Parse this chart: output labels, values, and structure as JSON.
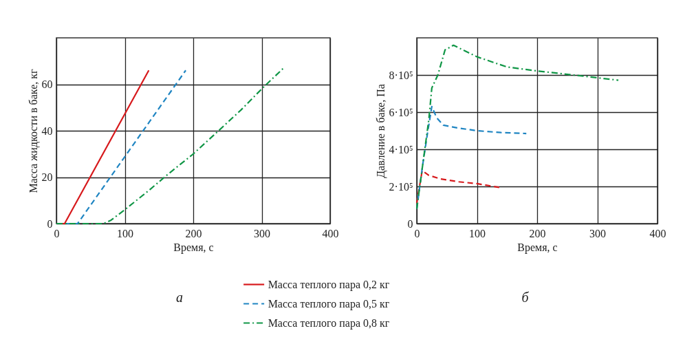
{
  "chart_data": [
    {
      "type": "line",
      "title": "а",
      "xlabel": "Время, с",
      "ylabel": "Масса жидкости в баке, кг",
      "xlim": [
        0,
        400
      ],
      "xticks": [
        0,
        100,
        200,
        300,
        400
      ],
      "ylim": [
        0,
        80
      ],
      "yticks": [
        0,
        20,
        40,
        60
      ],
      "grid": true,
      "legend": "bottom",
      "series": [
        {
          "name": "Масса теплого пара 0,2 кг",
          "color": "#d7191c",
          "line_style": "solid",
          "x": [
            0,
            12,
            135
          ],
          "values": [
            0,
            0,
            66
          ]
        },
        {
          "name": "Масса теплого пара 0,5 кг",
          "color": "#1f85c2",
          "line_style": "dashed",
          "x": [
            0,
            31,
            189
          ],
          "values": [
            0,
            0,
            66
          ]
        },
        {
          "name": "Масса теплого пара 0,8 кг",
          "color": "#109646",
          "line_style": "dashdot",
          "x": [
            0,
            69,
            80,
            100,
            134,
            162,
            200,
            237,
            270,
            300,
            332
          ],
          "values": [
            0,
            0,
            1.5,
            6,
            14,
            21,
            30,
            40,
            49,
            58,
            67
          ]
        }
      ]
    },
    {
      "type": "line",
      "title": "б",
      "xlabel": "Время, с",
      "ylabel": "Давление в баке, Па",
      "xlim": [
        0,
        400
      ],
      "xticks": [
        0,
        100,
        200,
        300,
        400
      ],
      "ylim": [
        0,
        1000000
      ],
      "yticks": [
        0,
        {
          "value": 200000,
          "label": "2·10⁵"
        },
        {
          "value": 400000,
          "label": "4·10⁵"
        },
        {
          "value": 600000,
          "label": "6·10⁵"
        },
        {
          "value": 800000,
          "label": "8·10⁵"
        }
      ],
      "grid": true,
      "series": [
        {
          "color": "#d7191c",
          "line_style": "dashed",
          "x": [
            0,
            4,
            9,
            20,
            40,
            70,
            100,
            137
          ],
          "values": [
            110000,
            190000,
            285000,
            260000,
            240000,
            225000,
            215000,
            195000
          ]
        },
        {
          "color": "#1f85c2",
          "line_style": "dashed",
          "x": [
            0,
            10,
            18,
            25,
            33,
            44,
            68,
            100,
            140,
            182
          ],
          "values": [
            80000,
            320000,
            490000,
            630000,
            570000,
            530000,
            515000,
            500000,
            490000,
            485000
          ]
        },
        {
          "color": "#109646",
          "line_style": "dashdot",
          "x": [
            0,
            20,
            25,
            35,
            47,
            61,
            100,
            150,
            200,
            260,
            300,
            335
          ],
          "values": [
            80000,
            560000,
            730000,
            800000,
            935000,
            960000,
            898000,
            843000,
            822000,
            800000,
            785000,
            772000
          ]
        }
      ]
    }
  ]
}
